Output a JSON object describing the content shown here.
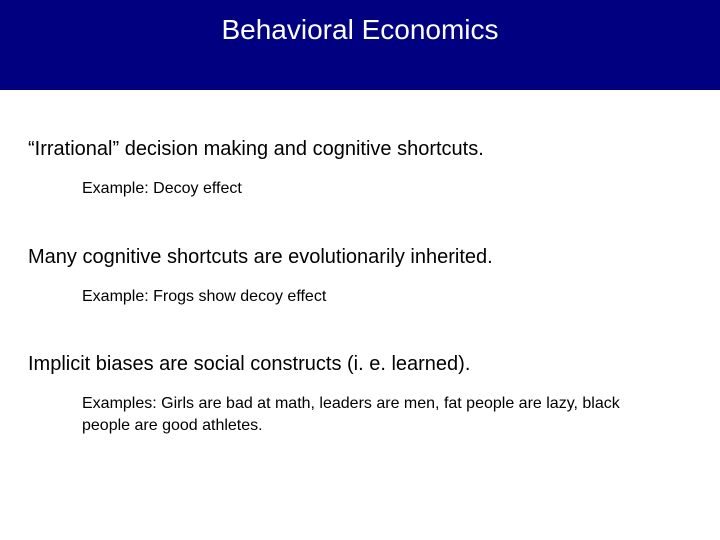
{
  "header": {
    "title": "Behavioral Economics",
    "background_color": "#000080",
    "title_color": "#ffffff",
    "title_fontsize": 28
  },
  "body": {
    "background_color": "#ffffff",
    "text_color": "#000000",
    "point_fontsize": 20,
    "example_fontsize": 16,
    "points": [
      {
        "text": "“Irrational” decision making and cognitive shortcuts.",
        "example": "Example: Decoy effect"
      },
      {
        "text": "Many cognitive shortcuts are evolutionarily inherited.",
        "example": "Example: Frogs show decoy effect"
      },
      {
        "text": "Implicit biases are social constructs (i. e. learned).",
        "example": "Examples: Girls are bad at math, leaders are men, fat people are lazy, black people are good athletes."
      }
    ]
  }
}
